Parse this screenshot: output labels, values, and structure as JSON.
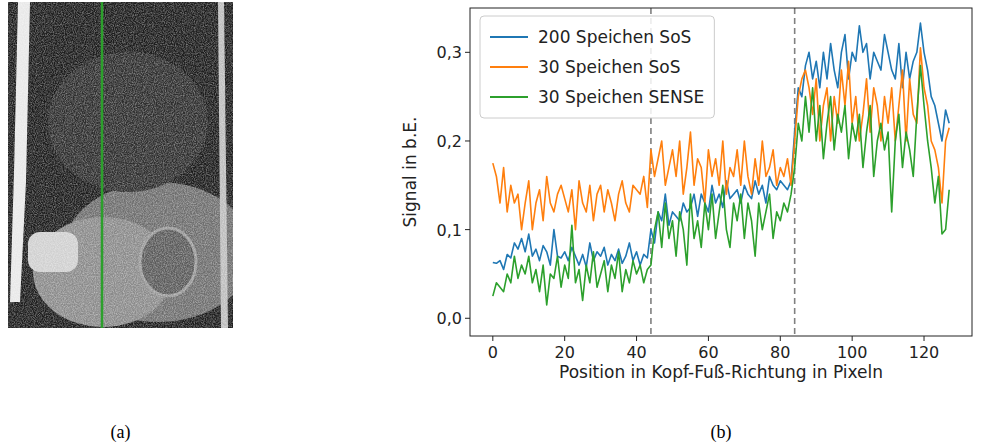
{
  "chart_data": {
    "type": "line",
    "x_label": "Position in Kopf-Fuß-Richtung in Pixeln",
    "y_label": "Signal in b.E.",
    "legend": "upper left",
    "xlim": [
      -6.35,
      133.35
    ],
    "ylim": [
      -0.02,
      0.35
    ],
    "xticks": [
      0,
      20,
      40,
      60,
      80,
      100,
      120
    ],
    "yticks": [
      {
        "value": 0,
        "label": "0,0"
      },
      {
        "value": 0.1,
        "label": "0,1"
      },
      {
        "value": 0.2,
        "label": "0,2"
      },
      {
        "value": 0.3,
        "label": "0,3"
      }
    ],
    "vlines": [
      44,
      84
    ],
    "x": [
      0,
      1,
      2,
      3,
      4,
      5,
      6,
      7,
      8,
      9,
      10,
      11,
      12,
      13,
      14,
      15,
      16,
      17,
      18,
      19,
      20,
      21,
      22,
      23,
      24,
      25,
      26,
      27,
      28,
      29,
      30,
      31,
      32,
      33,
      34,
      35,
      36,
      37,
      38,
      39,
      40,
      41,
      42,
      43,
      44,
      45,
      46,
      47,
      48,
      49,
      50,
      51,
      52,
      53,
      54,
      55,
      56,
      57,
      58,
      59,
      60,
      61,
      62,
      63,
      64,
      65,
      66,
      67,
      68,
      69,
      70,
      71,
      72,
      73,
      74,
      75,
      76,
      77,
      78,
      79,
      80,
      81,
      82,
      83,
      84,
      85,
      86,
      87,
      88,
      89,
      90,
      91,
      92,
      93,
      94,
      95,
      96,
      97,
      98,
      99,
      100,
      101,
      102,
      103,
      104,
      105,
      106,
      107,
      108,
      109,
      110,
      111,
      112,
      113,
      114,
      115,
      116,
      117,
      118,
      119,
      120,
      121,
      122,
      123,
      124,
      125,
      126,
      127
    ],
    "series": [
      {
        "name": "200 Speichen SoS",
        "color": "#1f77b4",
        "values": [
          0.063,
          0.062,
          0.065,
          0.055,
          0.072,
          0.068,
          0.085,
          0.078,
          0.09,
          0.075,
          0.095,
          0.07,
          0.078,
          0.065,
          0.082,
          0.075,
          0.06,
          0.1,
          0.07,
          0.068,
          0.075,
          0.065,
          0.08,
          0.07,
          0.06,
          0.072,
          0.058,
          0.085,
          0.065,
          0.075,
          0.07,
          0.08,
          0.06,
          0.072,
          0.065,
          0.078,
          0.062,
          0.07,
          0.085,
          0.065,
          0.075,
          0.06,
          0.072,
          0.068,
          0.1,
          0.085,
          0.12,
          0.11,
          0.14,
          0.105,
          0.12,
          0.115,
          0.11,
          0.13,
          0.12,
          0.125,
          0.14,
          0.115,
          0.14,
          0.13,
          0.12,
          0.15,
          0.13,
          0.14,
          0.125,
          0.155,
          0.135,
          0.14,
          0.145,
          0.13,
          0.15,
          0.14,
          0.135,
          0.155,
          0.14,
          0.15,
          0.13,
          0.16,
          0.15,
          0.145,
          0.155,
          0.15,
          0.145,
          0.155,
          0.21,
          0.26,
          0.25,
          0.285,
          0.3,
          0.27,
          0.29,
          0.26,
          0.3,
          0.27,
          0.31,
          0.28,
          0.26,
          0.3,
          0.32,
          0.27,
          0.3,
          0.29,
          0.33,
          0.3,
          0.31,
          0.27,
          0.3,
          0.29,
          0.28,
          0.32,
          0.3,
          0.28,
          0.27,
          0.31,
          0.26,
          0.3,
          0.27,
          0.29,
          0.3,
          0.333,
          0.3,
          0.28,
          0.25,
          0.24,
          0.22,
          0.2,
          0.235,
          0.22
        ]
      },
      {
        "name": "30 Speichen SoS",
        "color": "#ff7f0e",
        "values": [
          0.175,
          0.16,
          0.13,
          0.17,
          0.12,
          0.15,
          0.13,
          0.14,
          0.1,
          0.13,
          0.155,
          0.1,
          0.13,
          0.145,
          0.11,
          0.16,
          0.13,
          0.12,
          0.14,
          0.15,
          0.135,
          0.12,
          0.145,
          0.1,
          0.155,
          0.13,
          0.12,
          0.15,
          0.11,
          0.14,
          0.15,
          0.12,
          0.145,
          0.13,
          0.11,
          0.14,
          0.155,
          0.13,
          0.12,
          0.15,
          0.145,
          0.14,
          0.16,
          0.125,
          0.19,
          0.16,
          0.18,
          0.2,
          0.15,
          0.17,
          0.19,
          0.16,
          0.2,
          0.14,
          0.17,
          0.21,
          0.15,
          0.18,
          0.17,
          0.13,
          0.19,
          0.16,
          0.18,
          0.15,
          0.2,
          0.14,
          0.17,
          0.16,
          0.19,
          0.15,
          0.2,
          0.16,
          0.14,
          0.18,
          0.15,
          0.2,
          0.16,
          0.17,
          0.19,
          0.15,
          0.17,
          0.16,
          0.18,
          0.15,
          0.2,
          0.25,
          0.27,
          0.28,
          0.26,
          0.23,
          0.27,
          0.2,
          0.24,
          0.26,
          0.2,
          0.25,
          0.22,
          0.28,
          0.24,
          0.29,
          0.22,
          0.25,
          0.2,
          0.23,
          0.27,
          0.21,
          0.26,
          0.24,
          0.2,
          0.25,
          0.22,
          0.26,
          0.2,
          0.24,
          0.28,
          0.2,
          0.27,
          0.23,
          0.22,
          0.305,
          0.26,
          0.24,
          0.2,
          0.19,
          0.17,
          0.13,
          0.2,
          0.215
        ]
      },
      {
        "name": "30 Speichen SENSE",
        "color": "#2ca02c",
        "values": [
          0.025,
          0.04,
          0.035,
          0.03,
          0.05,
          0.04,
          0.07,
          0.045,
          0.06,
          0.05,
          0.07,
          0.04,
          0.055,
          0.03,
          0.06,
          0.015,
          0.05,
          0.045,
          0.07,
          0.035,
          0.06,
          0.045,
          0.105,
          0.04,
          0.055,
          0.02,
          0.06,
          0.04,
          0.075,
          0.035,
          0.05,
          0.065,
          0.03,
          0.06,
          0.045,
          0.075,
          0.03,
          0.055,
          0.04,
          0.065,
          0.05,
          0.06,
          0.04,
          0.055,
          0.06,
          0.1,
          0.12,
          0.08,
          0.13,
          0.09,
          0.11,
          0.07,
          0.12,
          0.1,
          0.06,
          0.14,
          0.09,
          0.11,
          0.08,
          0.13,
          0.1,
          0.14,
          0.09,
          0.12,
          0.15,
          0.1,
          0.08,
          0.13,
          0.11,
          0.14,
          0.09,
          0.13,
          0.11,
          0.07,
          0.13,
          0.1,
          0.12,
          0.14,
          0.09,
          0.12,
          0.11,
          0.13,
          0.12,
          0.14,
          0.17,
          0.22,
          0.2,
          0.25,
          0.21,
          0.26,
          0.2,
          0.24,
          0.18,
          0.22,
          0.25,
          0.19,
          0.23,
          0.21,
          0.24,
          0.18,
          0.22,
          0.2,
          0.23,
          0.17,
          0.21,
          0.24,
          0.16,
          0.2,
          0.22,
          0.19,
          0.21,
          0.12,
          0.2,
          0.23,
          0.17,
          0.21,
          0.19,
          0.16,
          0.23,
          0.285,
          0.24,
          0.2,
          0.17,
          0.13,
          0.16,
          0.095,
          0.1,
          0.145
        ]
      }
    ]
  },
  "figure": {
    "image_label": "(a)",
    "chart_label": "(b)"
  }
}
